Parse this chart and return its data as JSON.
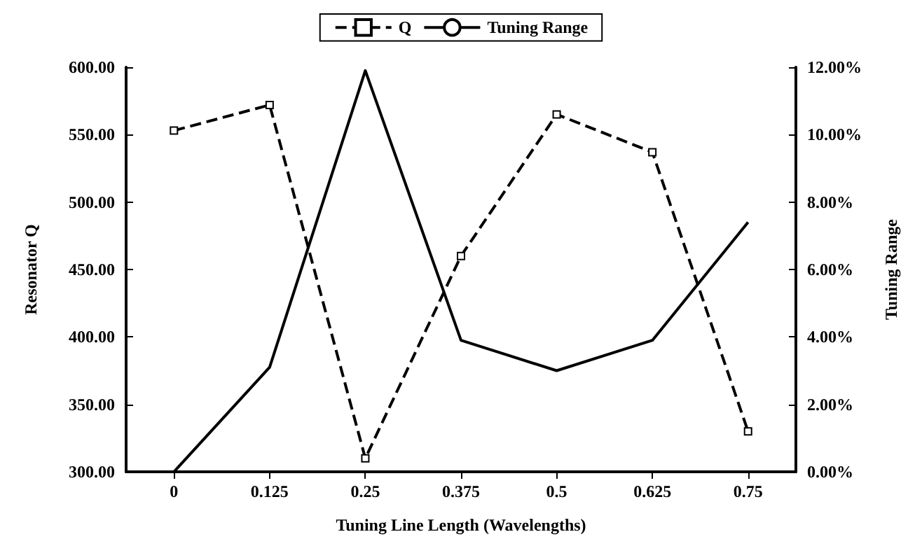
{
  "chart_data": {
    "type": "line",
    "xlabel": "Tuning Line Length (Wavelengths)",
    "ylabel": "Resonator Q",
    "y2label": "Tuning Range",
    "categories": [
      "0",
      "0.125",
      "0.25",
      "0.375",
      "0.5",
      "0.625",
      "0.75"
    ],
    "series": [
      {
        "name": "Q",
        "color": "#000000",
        "marker": "square",
        "line_style": "dashed",
        "values": [
          553,
          572,
          310,
          460,
          565,
          537,
          330
        ]
      },
      {
        "name": "Tuning Range",
        "color": "#000000",
        "marker": "none",
        "line_style": "solid",
        "axis": "y2",
        "values": [
          0,
          3.1,
          11.9,
          3.9,
          3.0,
          3.9,
          7.4
        ]
      }
    ],
    "ylim": [
      300,
      600
    ],
    "yticks": [
      {
        "value": 300,
        "label": "300.00"
      },
      {
        "value": 350,
        "label": "350.00"
      },
      {
        "value": 400,
        "label": "400.00"
      },
      {
        "value": 450,
        "label": "450.00"
      },
      {
        "value": 500,
        "label": "500.00"
      },
      {
        "value": 550,
        "label": "550.00"
      },
      {
        "value": 600,
        "label": "600.00"
      }
    ],
    "y2lim": [
      0,
      12
    ],
    "y2ticks": [
      {
        "value": 0,
        "label": "0.00%"
      },
      {
        "value": 2,
        "label": "2.00%"
      },
      {
        "value": 4,
        "label": "4.00%"
      },
      {
        "value": 6,
        "label": "6.00%"
      },
      {
        "value": 8,
        "label": "8.00%"
      },
      {
        "value": 10,
        "label": "10.00%"
      },
      {
        "value": 12,
        "label": "12.00%"
      }
    ],
    "grid": false,
    "legend": "top"
  }
}
